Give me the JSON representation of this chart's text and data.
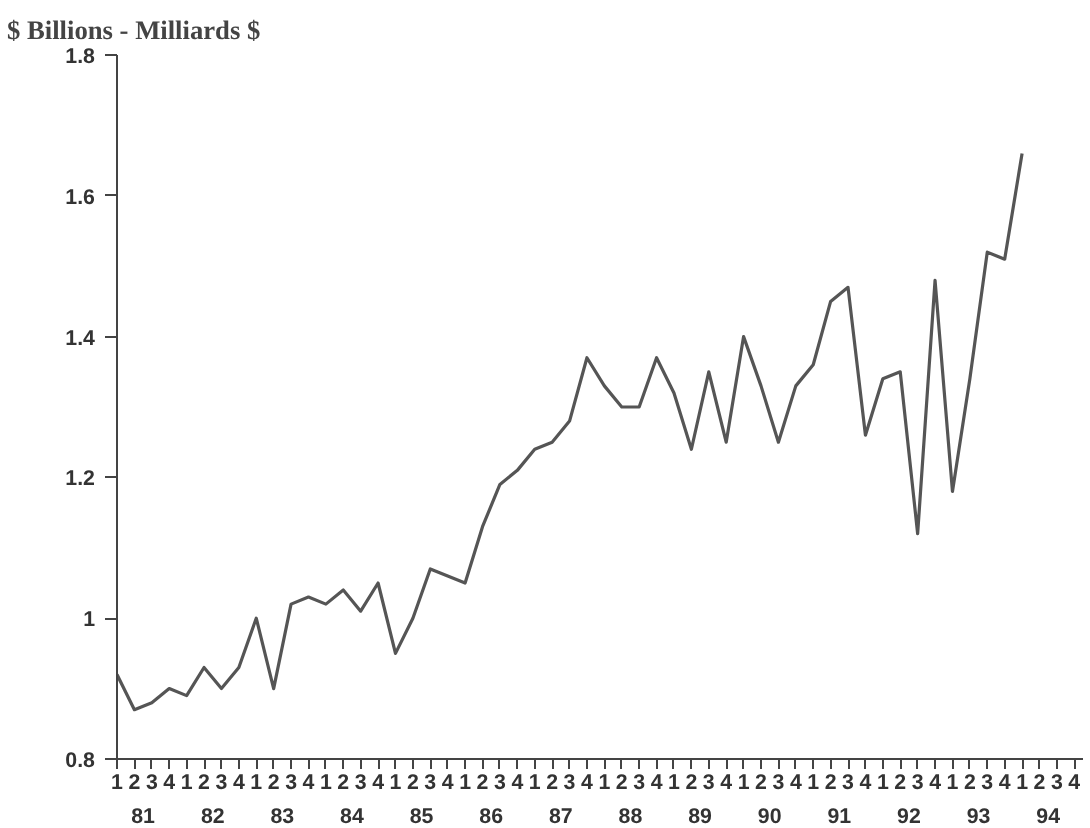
{
  "chart_data": {
    "type": "line",
    "title": "$ Billions - Milliards $",
    "categories": [
      "1",
      "2",
      "3",
      "4",
      "1",
      "2",
      "3",
      "4",
      "1",
      "2",
      "3",
      "4",
      "1",
      "2",
      "3",
      "4",
      "1",
      "2",
      "3",
      "4",
      "1",
      "2",
      "3",
      "4",
      "1",
      "2",
      "3",
      "4",
      "1",
      "2",
      "3",
      "4",
      "1",
      "2",
      "3",
      "4",
      "1",
      "2",
      "3",
      "4",
      "1",
      "2",
      "3",
      "4",
      "1",
      "2",
      "3",
      "4",
      "1",
      "2",
      "3",
      "4",
      "1",
      "2",
      "3",
      "4"
    ],
    "annotations": [
      "81",
      "82",
      "83",
      "84",
      "85",
      "86",
      "87",
      "88",
      "89",
      "90",
      "91",
      "92",
      "93",
      "94"
    ],
    "series": [
      {
        "color": "#555555",
        "values": [
          0.92,
          0.87,
          0.88,
          0.9,
          0.89,
          0.93,
          0.9,
          0.93,
          1.0,
          0.9,
          1.02,
          1.03,
          1.02,
          1.04,
          1.01,
          1.05,
          0.95,
          1.0,
          1.07,
          1.06,
          1.05,
          1.13,
          1.19,
          1.21,
          1.24,
          1.25,
          1.28,
          1.37,
          1.33,
          1.3,
          1.3,
          1.37,
          1.32,
          1.24,
          1.35,
          1.25,
          1.4,
          1.33,
          1.25,
          1.33,
          1.36,
          1.45,
          1.47,
          1.26,
          1.34,
          1.35,
          1.12,
          1.48,
          1.18,
          1.34,
          1.52,
          1.51,
          1.66,
          null,
          null,
          null
        ]
      }
    ],
    "ylim": [
      0.8,
      1.8
    ],
    "yticks": [
      0.8,
      1,
      1.2,
      1.4,
      1.6,
      1.8
    ],
    "grid": false,
    "marker": "none",
    "line_style": "solid"
  }
}
